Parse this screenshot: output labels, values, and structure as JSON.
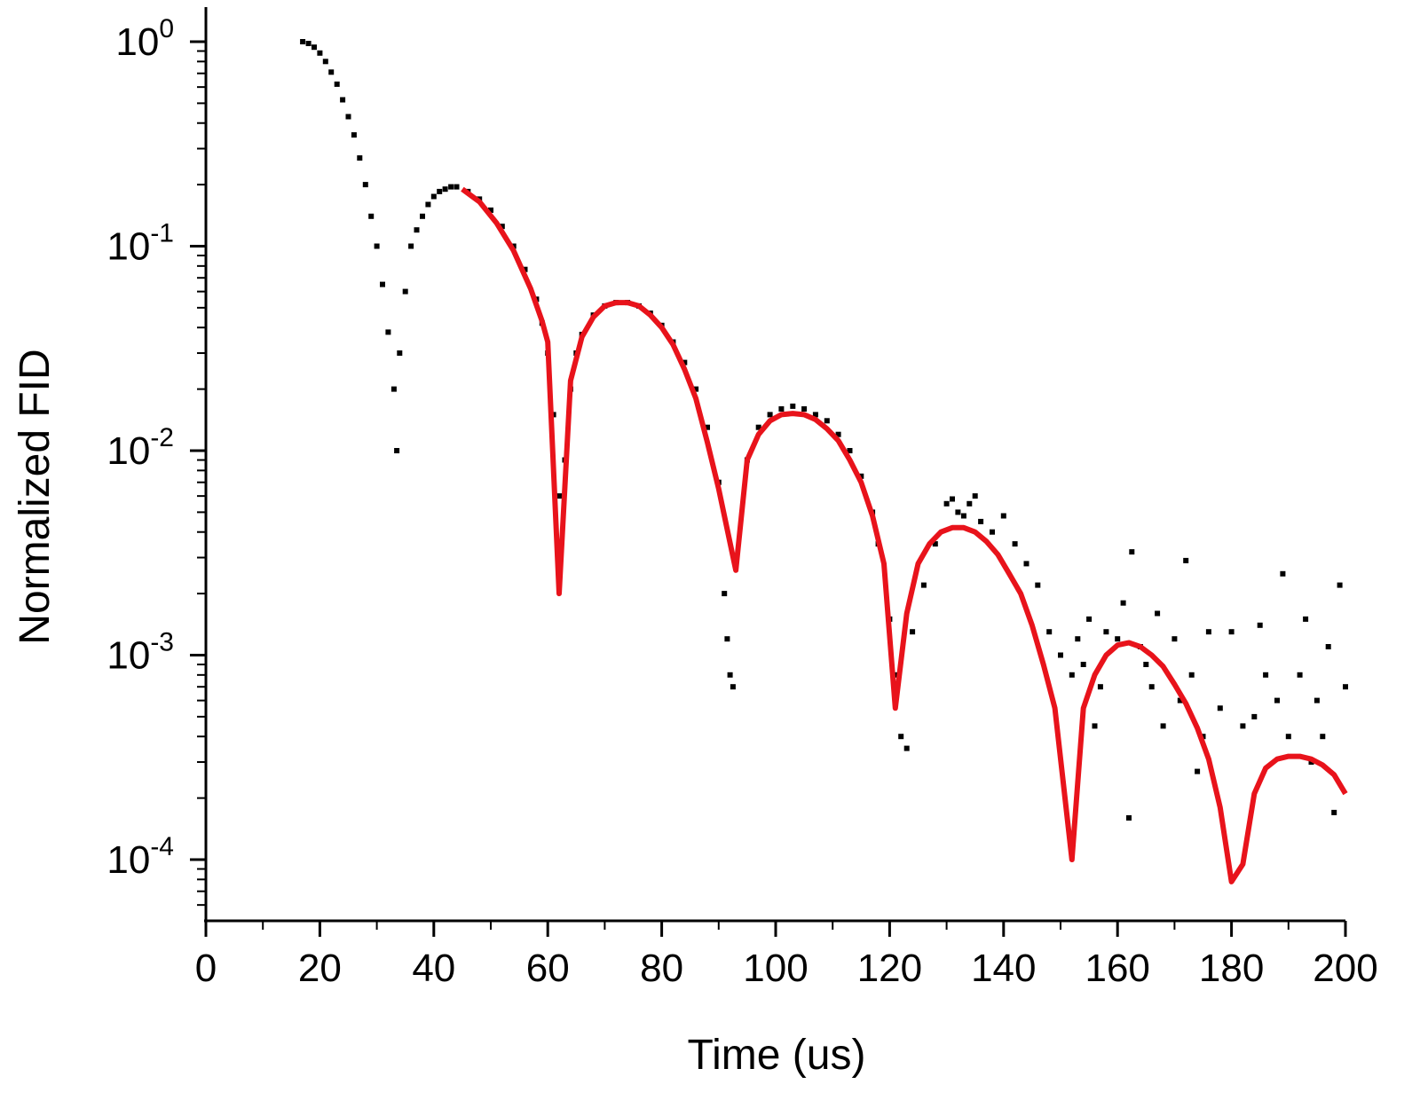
{
  "chart_data": {
    "type": "scatter",
    "title": "",
    "xlabel": "Time (us)",
    "ylabel": "Normalized FID",
    "xlim": [
      0,
      200
    ],
    "ylim": [
      5e-05,
      1.3
    ],
    "yscale": "log",
    "grid": false,
    "legend": "none",
    "x_ticks": [
      "0",
      "20",
      "40",
      "60",
      "80",
      "100",
      "120",
      "140",
      "160",
      "180",
      "200"
    ],
    "y_ticks": [
      {
        "base": "10",
        "exp": "0"
      },
      {
        "base": "10",
        "exp": "-1"
      },
      {
        "base": "10",
        "exp": "-2"
      },
      {
        "base": "10",
        "exp": "-3"
      },
      {
        "base": "10",
        "exp": "-4"
      }
    ],
    "series": [
      {
        "kind": "scatter",
        "color": "#000000",
        "points": [
          [
            17,
            1.0
          ],
          [
            18,
            0.98
          ],
          [
            19,
            0.94
          ],
          [
            20,
            0.88
          ],
          [
            21,
            0.8
          ],
          [
            22,
            0.71
          ],
          [
            23,
            0.62
          ],
          [
            24,
            0.52
          ],
          [
            25,
            0.43
          ],
          [
            26,
            0.35
          ],
          [
            27,
            0.27
          ],
          [
            28,
            0.2
          ],
          [
            29,
            0.14
          ],
          [
            30,
            0.1
          ],
          [
            31,
            0.065
          ],
          [
            32,
            0.038
          ],
          [
            33,
            0.02
          ],
          [
            33.5,
            0.01
          ],
          [
            34,
            0.03
          ],
          [
            35,
            0.06
          ],
          [
            36,
            0.1
          ],
          [
            37,
            0.12
          ],
          [
            38,
            0.14
          ],
          [
            39,
            0.16
          ],
          [
            40,
            0.175
          ],
          [
            41,
            0.185
          ],
          [
            42,
            0.19
          ],
          [
            43,
            0.195
          ],
          [
            44,
            0.195
          ],
          [
            46,
            0.185
          ],
          [
            48,
            0.17
          ],
          [
            50,
            0.15
          ],
          [
            52,
            0.125
          ],
          [
            54,
            0.1
          ],
          [
            56,
            0.077
          ],
          [
            58,
            0.055
          ],
          [
            59,
            0.042
          ],
          [
            60,
            0.03
          ],
          [
            61,
            0.015
          ],
          [
            62,
            0.006
          ],
          [
            63,
            0.009
          ],
          [
            64,
            0.02
          ],
          [
            65,
            0.03
          ],
          [
            66,
            0.037
          ],
          [
            68,
            0.046
          ],
          [
            70,
            0.051
          ],
          [
            72,
            0.053
          ],
          [
            74,
            0.053
          ],
          [
            76,
            0.051
          ],
          [
            78,
            0.047
          ],
          [
            80,
            0.041
          ],
          [
            82,
            0.034
          ],
          [
            84,
            0.027
          ],
          [
            86,
            0.02
          ],
          [
            88,
            0.013
          ],
          [
            90,
            0.007
          ],
          [
            91,
            0.002
          ],
          [
            91.5,
            0.0012
          ],
          [
            92,
            0.0008
          ],
          [
            92.5,
            0.0007
          ],
          [
            93,
            0.003
          ],
          [
            95,
            0.009
          ],
          [
            97,
            0.013
          ],
          [
            99,
            0.015
          ],
          [
            101,
            0.016
          ],
          [
            103,
            0.0165
          ],
          [
            105,
            0.016
          ],
          [
            107,
            0.015
          ],
          [
            109,
            0.014
          ],
          [
            111,
            0.012
          ],
          [
            113,
            0.01
          ],
          [
            115,
            0.0075
          ],
          [
            117,
            0.005
          ],
          [
            118,
            0.0035
          ],
          [
            120,
            0.0015
          ],
          [
            121,
            0.0008
          ],
          [
            122,
            0.0004
          ],
          [
            123,
            0.00035
          ],
          [
            124,
            0.0013
          ],
          [
            126,
            0.0022
          ],
          [
            128,
            0.0035
          ],
          [
            130,
            0.0055
          ],
          [
            131,
            0.0058
          ],
          [
            132,
            0.005
          ],
          [
            133,
            0.0048
          ],
          [
            134,
            0.0055
          ],
          [
            135,
            0.006
          ],
          [
            136,
            0.0045
          ],
          [
            138,
            0.004
          ],
          [
            140,
            0.0048
          ],
          [
            142,
            0.0035
          ],
          [
            144,
            0.0028
          ],
          [
            146,
            0.0022
          ],
          [
            148,
            0.0013
          ],
          [
            150,
            0.001
          ],
          [
            152,
            0.0008
          ],
          [
            153,
            0.0012
          ],
          [
            154,
            0.0009
          ],
          [
            155,
            0.0015
          ],
          [
            156,
            0.00045
          ],
          [
            157,
            0.0007
          ],
          [
            158,
            0.0013
          ],
          [
            160,
            0.0012
          ],
          [
            161,
            0.0018
          ],
          [
            162,
            0.00016
          ],
          [
            162.5,
            0.0032
          ],
          [
            164,
            0.0011
          ],
          [
            165,
            0.0009
          ],
          [
            166,
            0.0007
          ],
          [
            167,
            0.0016
          ],
          [
            168,
            0.00045
          ],
          [
            170,
            0.0012
          ],
          [
            171,
            0.0006
          ],
          [
            172,
            0.0029
          ],
          [
            173,
            0.0008
          ],
          [
            174,
            0.00027
          ],
          [
            175,
            0.0004
          ],
          [
            176,
            0.0013
          ],
          [
            178,
            0.00055
          ],
          [
            180,
            0.0013
          ],
          [
            182,
            0.00045
          ],
          [
            184,
            0.0005
          ],
          [
            185,
            0.0014
          ],
          [
            186,
            0.0008
          ],
          [
            188,
            0.0006
          ],
          [
            189,
            0.0025
          ],
          [
            190,
            0.0004
          ],
          [
            192,
            0.0008
          ],
          [
            193,
            0.0015
          ],
          [
            194,
            0.0003
          ],
          [
            195,
            0.0006
          ],
          [
            196,
            0.0004
          ],
          [
            197,
            0.0011
          ],
          [
            198,
            0.00017
          ],
          [
            199,
            0.0022
          ],
          [
            200,
            0.0007
          ]
        ]
      },
      {
        "kind": "line",
        "color": "#e8131b",
        "points": [
          [
            45,
            0.19
          ],
          [
            48,
            0.165
          ],
          [
            51,
            0.13
          ],
          [
            54,
            0.095
          ],
          [
            57,
            0.062
          ],
          [
            59,
            0.043
          ],
          [
            60,
            0.034
          ],
          [
            62,
            0.002
          ],
          [
            64,
            0.022
          ],
          [
            66,
            0.036
          ],
          [
            68,
            0.045
          ],
          [
            70,
            0.051
          ],
          [
            72,
            0.053
          ],
          [
            74,
            0.053
          ],
          [
            76,
            0.051
          ],
          [
            78,
            0.046
          ],
          [
            80,
            0.04
          ],
          [
            82,
            0.033
          ],
          [
            84,
            0.025
          ],
          [
            86,
            0.018
          ],
          [
            88,
            0.011
          ],
          [
            90,
            0.0065
          ],
          [
            93,
            0.0026
          ],
          [
            95,
            0.009
          ],
          [
            97,
            0.012
          ],
          [
            99,
            0.014
          ],
          [
            101,
            0.015
          ],
          [
            103,
            0.0152
          ],
          [
            105,
            0.015
          ],
          [
            107,
            0.0142
          ],
          [
            109,
            0.0128
          ],
          [
            111,
            0.0112
          ],
          [
            113,
            0.009
          ],
          [
            115,
            0.007
          ],
          [
            117,
            0.0048
          ],
          [
            119,
            0.0028
          ],
          [
            121,
            0.00055
          ],
          [
            123,
            0.0016
          ],
          [
            125,
            0.0028
          ],
          [
            127,
            0.0035
          ],
          [
            129,
            0.004
          ],
          [
            131,
            0.0042
          ],
          [
            133,
            0.0042
          ],
          [
            135,
            0.004
          ],
          [
            137,
            0.0036
          ],
          [
            139,
            0.0031
          ],
          [
            141,
            0.0025
          ],
          [
            143,
            0.002
          ],
          [
            145,
            0.0014
          ],
          [
            147,
            0.0009
          ],
          [
            149,
            0.00055
          ],
          [
            152,
            0.0001
          ],
          [
            154,
            0.00055
          ],
          [
            156,
            0.0008
          ],
          [
            158,
            0.001
          ],
          [
            160,
            0.00112
          ],
          [
            162,
            0.00115
          ],
          [
            164,
            0.0011
          ],
          [
            166,
            0.001
          ],
          [
            168,
            0.00088
          ],
          [
            170,
            0.00072
          ],
          [
            172,
            0.00058
          ],
          [
            174,
            0.00044
          ],
          [
            176,
            0.00031
          ],
          [
            178,
            0.00018
          ],
          [
            180,
            7.8e-05
          ],
          [
            182,
            9.5e-05
          ],
          [
            184,
            0.00021
          ],
          [
            186,
            0.00028
          ],
          [
            188,
            0.00031
          ],
          [
            190,
            0.00032
          ],
          [
            192,
            0.00032
          ],
          [
            194,
            0.00031
          ],
          [
            196,
            0.00029
          ],
          [
            198,
            0.00026
          ],
          [
            200,
            0.00021
          ]
        ]
      }
    ]
  }
}
